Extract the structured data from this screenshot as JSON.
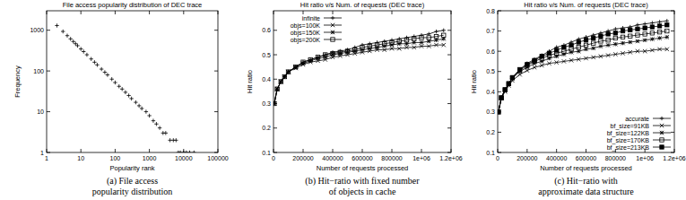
{
  "chart_data": [
    {
      "type": "scatter",
      "title": "File access popularity distribution of DEC trace",
      "caption": [
        "(a) File access",
        "popularity distribution"
      ],
      "x_label": "Popularity rank",
      "y_label": "Frequency",
      "log": true,
      "grid": false,
      "marker": "plus",
      "color": "#000000",
      "xlim": [
        1,
        100000
      ],
      "ylim": [
        1,
        3000
      ],
      "xticks": [
        1,
        10,
        100,
        1000,
        10000,
        100000
      ],
      "yticks": [
        1,
        10,
        100,
        1000
      ],
      "x": [
        2,
        3,
        4,
        5,
        6,
        7,
        8,
        10,
        12,
        15,
        20,
        25,
        30,
        40,
        50,
        60,
        80,
        100,
        130,
        160,
        200,
        250,
        300,
        400,
        500,
        600,
        800,
        1000,
        1300,
        1600,
        2000,
        2500,
        3000,
        4000,
        5000,
        6000,
        7000,
        8000,
        10000,
        12000,
        15000,
        20000
      ],
      "values": [
        1300,
        932,
        736,
        613,
        528,
        466,
        417,
        347,
        299,
        250,
        197,
        164,
        141,
        111,
        93,
        80,
        63,
        52,
        42,
        36,
        30,
        25,
        21,
        17,
        14,
        12,
        10,
        8,
        6,
        5,
        4,
        3,
        3,
        2,
        2,
        2,
        1,
        1,
        1,
        1,
        1,
        1
      ]
    },
    {
      "type": "line",
      "title": "Hit ratio v/s Num. of requests (DEC trace)",
      "caption": [
        "(b) Hit−ratio with fixed number",
        "of objects in cache"
      ],
      "x_label": "Number of requests processed",
      "y_label": "Hit ratio",
      "grid": false,
      "legend": "top-left",
      "xlim": [
        0,
        1200000
      ],
      "ylim": [
        0.1,
        0.68
      ],
      "xticks": [
        0,
        200000,
        400000,
        600000,
        800000,
        {
          "value": 1000000,
          "label": "1e+06"
        },
        {
          "value": 1200000,
          "label": "1.2e+06"
        }
      ],
      "yticks": [
        0.1,
        0.2,
        0.3,
        0.4,
        0.5,
        0.6
      ],
      "x": [
        5000,
        25000,
        50000,
        75000,
        100000,
        150000,
        200000,
        250000,
        300000,
        350000,
        400000,
        450000,
        500000,
        550000,
        600000,
        650000,
        700000,
        750000,
        800000,
        850000,
        900000,
        950000,
        1000000,
        1050000,
        1100000,
        1150000
      ],
      "series": [
        {
          "name": "infinite",
          "color": "#000000",
          "marker": "plus",
          "values": [
            0.3,
            0.36,
            0.39,
            0.41,
            0.43,
            0.45,
            0.47,
            0.48,
            0.49,
            0.5,
            0.51,
            0.515,
            0.52,
            0.53,
            0.54,
            0.545,
            0.55,
            0.555,
            0.56,
            0.565,
            0.57,
            0.575,
            0.58,
            0.585,
            0.595,
            0.6
          ]
        },
        {
          "name": "objs=100K",
          "color": "#000000",
          "marker": "cross",
          "values": [
            0.3,
            0.36,
            0.39,
            0.41,
            0.43,
            0.445,
            0.46,
            0.47,
            0.475,
            0.48,
            0.49,
            0.495,
            0.5,
            0.505,
            0.51,
            0.515,
            0.52,
            0.52,
            0.525,
            0.525,
            0.53,
            0.53,
            0.535,
            0.535,
            0.54,
            0.54
          ]
        },
        {
          "name": "objs=150K",
          "color": "#000000",
          "marker": "star",
          "values": [
            0.3,
            0.36,
            0.39,
            0.41,
            0.43,
            0.45,
            0.465,
            0.475,
            0.485,
            0.49,
            0.5,
            0.505,
            0.51,
            0.515,
            0.52,
            0.525,
            0.53,
            0.535,
            0.54,
            0.545,
            0.545,
            0.55,
            0.55,
            0.555,
            0.56,
            0.565
          ]
        },
        {
          "name": "objs=200K",
          "color": "#000000",
          "marker": "square",
          "values": [
            0.3,
            0.36,
            0.39,
            0.41,
            0.43,
            0.45,
            0.47,
            0.48,
            0.49,
            0.5,
            0.505,
            0.51,
            0.515,
            0.52,
            0.53,
            0.535,
            0.54,
            0.545,
            0.55,
            0.555,
            0.56,
            0.565,
            0.57,
            0.57,
            0.575,
            0.58
          ]
        }
      ]
    },
    {
      "type": "line",
      "title": "Hit ratio v/s Num. of requests (DEC trace)",
      "caption": [
        "(c) Hit−ratio with",
        "approximate data structure"
      ],
      "x_label": "Number of requests processed",
      "y_label": "Hit ratio",
      "grid": false,
      "legend": "bottom-right",
      "xlim": [
        0,
        1200000
      ],
      "ylim": [
        0.1,
        0.8
      ],
      "xticks": [
        0,
        200000,
        400000,
        600000,
        800000,
        {
          "value": 1000000,
          "label": "1e+06"
        },
        {
          "value": 1200000,
          "label": "1.2e+06"
        }
      ],
      "yticks": [
        0.1,
        0.2,
        0.3,
        0.4,
        0.5,
        0.6,
        0.7,
        0.8
      ],
      "x": [
        5000,
        25000,
        50000,
        75000,
        100000,
        150000,
        200000,
        250000,
        300000,
        350000,
        400000,
        450000,
        500000,
        550000,
        600000,
        650000,
        700000,
        750000,
        800000,
        850000,
        900000,
        950000,
        1000000,
        1050000,
        1100000,
        1150000
      ],
      "series": [
        {
          "name": "accurate",
          "color": "#000000",
          "marker": "plus",
          "values": [
            0.3,
            0.37,
            0.41,
            0.44,
            0.47,
            0.51,
            0.54,
            0.56,
            0.58,
            0.6,
            0.62,
            0.63,
            0.645,
            0.66,
            0.67,
            0.68,
            0.69,
            0.7,
            0.71,
            0.715,
            0.72,
            0.73,
            0.735,
            0.74,
            0.745,
            0.75
          ]
        },
        {
          "name": "bf_size=91KB",
          "color": "#000000",
          "marker": "cross",
          "values": [
            0.3,
            0.37,
            0.4,
            0.43,
            0.455,
            0.485,
            0.505,
            0.52,
            0.53,
            0.54,
            0.545,
            0.55,
            0.555,
            0.56,
            0.565,
            0.57,
            0.575,
            0.58,
            0.585,
            0.59,
            0.595,
            0.6,
            0.6,
            0.605,
            0.61,
            0.61
          ]
        },
        {
          "name": "bf_size=122KB",
          "color": "#000000",
          "marker": "star",
          "values": [
            0.3,
            0.37,
            0.41,
            0.44,
            0.465,
            0.5,
            0.52,
            0.54,
            0.55,
            0.565,
            0.575,
            0.585,
            0.595,
            0.6,
            0.61,
            0.615,
            0.625,
            0.63,
            0.635,
            0.64,
            0.645,
            0.65,
            0.655,
            0.66,
            0.665,
            0.67
          ]
        },
        {
          "name": "bf_size=170KB",
          "color": "#000000",
          "marker": "square",
          "values": [
            0.3,
            0.37,
            0.41,
            0.44,
            0.47,
            0.505,
            0.53,
            0.55,
            0.565,
            0.58,
            0.59,
            0.6,
            0.61,
            0.62,
            0.63,
            0.64,
            0.65,
            0.655,
            0.665,
            0.67,
            0.675,
            0.68,
            0.685,
            0.69,
            0.695,
            0.7
          ]
        },
        {
          "name": "bf_size=213KB",
          "color": "#000000",
          "marker": "filled-square",
          "values": [
            0.3,
            0.37,
            0.41,
            0.44,
            0.47,
            0.51,
            0.535,
            0.555,
            0.575,
            0.59,
            0.605,
            0.62,
            0.63,
            0.645,
            0.655,
            0.665,
            0.675,
            0.685,
            0.69,
            0.7,
            0.705,
            0.71,
            0.715,
            0.72,
            0.725,
            0.73
          ]
        }
      ]
    }
  ]
}
